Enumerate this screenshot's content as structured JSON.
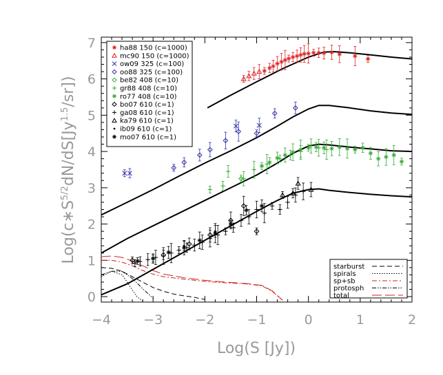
{
  "chart_data": {
    "type": "scatter",
    "xlabel": "Log(S [Jy])",
    "ylabel_parts": [
      "Log(c∗S",
      "5/2",
      "dN/dS[Jy",
      "1.5",
      "/sr])"
    ],
    "xlim": [
      -4,
      2
    ],
    "ylim": [
      -0.15,
      7.15
    ],
    "x_ticks": [
      -4,
      -3,
      -2,
      -1,
      0,
      1,
      2
    ],
    "y_ticks": [
      0,
      1,
      2,
      3,
      4,
      5,
      6,
      7
    ],
    "x_tick_labels": [
      "−4",
      "−3",
      "−2",
      "−1",
      "0",
      "1",
      "2"
    ],
    "y_tick_labels": [
      "0",
      "1",
      "2",
      "3",
      "4",
      "5",
      "6",
      "7"
    ],
    "grid": false,
    "legend_position": "top-left",
    "series": [
      {
        "name": "ha88 150 (c=1000)",
        "marker": "asterisk",
        "color": "#dd2222",
        "x": [
          -0.85,
          -0.75,
          -0.68,
          -0.6,
          -0.52,
          -0.45,
          -0.38,
          -0.3,
          -0.22,
          -0.15,
          -0.08,
          0.0,
          0.1,
          0.2,
          0.3,
          0.45,
          0.6,
          0.9,
          1.15
        ],
        "y": [
          6.22,
          6.3,
          6.35,
          6.42,
          6.47,
          6.52,
          6.56,
          6.6,
          6.63,
          6.66,
          6.69,
          6.7,
          6.72,
          6.72,
          6.71,
          6.73,
          6.68,
          6.63,
          6.55
        ]
      },
      {
        "name": "mc90 150 (c=1000)",
        "marker": "triangle",
        "color": "#dd2222",
        "x": [
          -1.25,
          -1.15,
          -1.05,
          -0.95
        ],
        "y": [
          6.0,
          6.08,
          6.15,
          6.2
        ]
      },
      {
        "name": "ow09 325 (c=100)",
        "marker": "x",
        "color": "#3333aa",
        "x": [
          -3.55,
          -3.45,
          -1.4,
          -0.95
        ],
        "y": [
          3.4,
          3.4,
          4.7,
          4.72
        ]
      },
      {
        "name": "oo88 325 (c=100)",
        "marker": "diamond",
        "color": "#3333aa",
        "x": [
          -2.6,
          -2.4,
          -2.1,
          -1.9,
          -1.6,
          -1.35,
          -1.0,
          -0.65,
          -0.25
        ],
        "y": [
          3.55,
          3.7,
          3.9,
          4.05,
          4.3,
          4.55,
          4.5,
          5.05,
          5.2
        ]
      },
      {
        "name": "ro77 408 (c=10)",
        "marker": "asterisk",
        "color": "#33aa33",
        "x": [
          -0.9,
          -0.75,
          -0.6,
          -0.45,
          -0.3,
          -0.15,
          0.0,
          0.15,
          0.3,
          0.45,
          0.6,
          0.75,
          0.9,
          1.05,
          1.2,
          1.35,
          1.5,
          1.65,
          1.8
        ],
        "y": [
          3.6,
          3.7,
          3.82,
          3.9,
          3.98,
          4.05,
          4.1,
          4.12,
          4.1,
          4.08,
          4.12,
          4.08,
          4.05,
          4.1,
          3.95,
          3.8,
          3.85,
          3.9,
          3.72
        ]
      },
      {
        "name": "be82 408 (c=10)",
        "marker": "diamond",
        "color": "#33aa33",
        "x": [
          -1.3
        ],
        "y": [
          3.25
        ]
      },
      {
        "name": "gr88 408 (c=10)",
        "marker": "plus",
        "color": "#33aa33",
        "x": [
          -1.9,
          -1.65,
          -1.55,
          -1.25,
          -1.05,
          -0.8,
          -0.55,
          -0.35,
          -0.15,
          0.05,
          0.2,
          0.35
        ],
        "y": [
          2.95,
          3.05,
          3.45,
          3.25,
          3.5,
          3.65,
          3.8,
          3.9,
          4.0,
          4.15,
          4.1,
          4.05
        ]
      },
      {
        "name": "bo07 610 (c=1)",
        "marker": "diamond",
        "color": "#000000",
        "x": [
          -3.4,
          -2.8,
          -2.3,
          -1.9,
          -1.5,
          -1.25,
          -1.0
        ],
        "y": [
          1.0,
          1.15,
          1.45,
          1.7,
          2.1,
          2.5,
          1.8
        ]
      },
      {
        "name": "ga08 610 (c=1)",
        "marker": "plus",
        "color": "#000000",
        "x": [
          -3.35,
          -3.25,
          -3.1,
          -2.95,
          -2.8,
          -2.65,
          -2.5,
          -2.35,
          -2.2,
          -2.05,
          -1.9,
          -1.75,
          -1.6,
          -1.45,
          -1.3,
          -1.15,
          -1.0,
          -0.85,
          -0.7,
          -0.55,
          -0.4,
          -0.25,
          -0.1
        ],
        "y": [
          0.92,
          0.97,
          1.02,
          1.08,
          1.12,
          1.2,
          1.28,
          1.35,
          1.42,
          1.5,
          1.6,
          1.7,
          1.8,
          1.9,
          2.1,
          2.2,
          2.4,
          2.3,
          2.5,
          2.4,
          2.6,
          2.8,
          2.9
        ]
      },
      {
        "name": "ka79 610 (c=1)",
        "marker": "triangle",
        "color": "#000000",
        "x": [
          -0.5,
          -0.3,
          -0.2,
          0.05
        ],
        "y": [
          2.8,
          2.85,
          3.12,
          2.95
        ]
      },
      {
        "name": "ib09 610 (c=1)",
        "marker": "dot",
        "color": "#000000",
        "x": [
          -3.0,
          -2.4,
          -1.8
        ],
        "y": [
          1.05,
          1.4,
          1.8
        ]
      },
      {
        "name": "mo07 610 (c=1)",
        "marker": "asterisk",
        "color": "#000000",
        "x": [
          -3.3,
          -3.0,
          -2.7,
          -2.4,
          -2.1,
          -1.8,
          -1.5,
          -1.2,
          -0.9
        ],
        "y": [
          0.98,
          1.05,
          1.22,
          1.35,
          1.55,
          1.75,
          2.0,
          2.38,
          2.5
        ]
      }
    ],
    "model_curves": [
      {
        "x": [
          -1.95,
          -1.5,
          -1,
          -0.5,
          0,
          0.3,
          0.5,
          0.8,
          1.2,
          1.6,
          2
        ],
        "y": [
          5.2,
          5.55,
          5.92,
          6.28,
          6.6,
          6.74,
          6.75,
          6.72,
          6.66,
          6.6,
          6.55
        ]
      },
      {
        "x": [
          -4,
          -3.5,
          -3,
          -2.5,
          -2,
          -1.5,
          -1,
          -0.6,
          -0.3,
          0,
          0.2,
          0.4,
          0.8,
          1.2,
          1.6,
          2
        ],
        "y": [
          2.25,
          2.6,
          2.95,
          3.32,
          3.68,
          4.02,
          4.38,
          4.7,
          4.95,
          5.17,
          5.27,
          5.27,
          5.2,
          5.12,
          5.06,
          5.02
        ]
      },
      {
        "x": [
          -4,
          -3.5,
          -3,
          -2.5,
          -2,
          -1.5,
          -1,
          -0.6,
          -0.3,
          0,
          0.2,
          0.4,
          0.8,
          1.2,
          1.6,
          2
        ],
        "y": [
          1.2,
          1.6,
          1.95,
          2.3,
          2.65,
          3.0,
          3.35,
          3.68,
          3.95,
          4.15,
          4.2,
          4.18,
          4.12,
          4.07,
          4.02,
          4.0
        ]
      },
      {
        "x": [
          -4,
          -3.5,
          -3,
          -2.5,
          -2,
          -1.5,
          -1,
          -0.6,
          -0.3,
          0,
          0.2,
          0.4,
          0.8,
          1.2,
          1.6,
          2
        ],
        "y": [
          0.05,
          0.35,
          0.75,
          1.15,
          1.55,
          1.95,
          2.35,
          2.65,
          2.85,
          2.95,
          2.97,
          2.93,
          2.87,
          2.82,
          2.78,
          2.75
        ]
      }
    ],
    "components": [
      {
        "name": "starburst",
        "dash": "7,4",
        "color": "#000000",
        "x": [
          -4,
          -3.8,
          -3.6,
          -3.4,
          -3.2,
          -3.0,
          -2.8,
          -2.6,
          -2.4,
          -2.2,
          -2.0
        ],
        "y": [
          0.8,
          0.78,
          0.7,
          0.55,
          0.4,
          0.25,
          0.15,
          0.07,
          0.02,
          -0.02,
          -0.08
        ]
      },
      {
        "name": "spirals",
        "dash": "1.5,2",
        "color": "#000000",
        "x": [
          -4,
          -3.8,
          -3.6,
          -3.5,
          -3.4,
          -3.3,
          -3.2
        ],
        "y": [
          0.55,
          0.7,
          0.6,
          0.4,
          0.18,
          -0.02,
          -0.12
        ]
      },
      {
        "name": "sp+sb",
        "dash": "7,3,2,3",
        "color": "#cc2222",
        "x": [
          -4,
          -3.8,
          -3.6,
          -3.4,
          -3.2,
          -3.0,
          -2.8,
          -2.4,
          -2.0,
          -1.6,
          -1.2,
          -0.9,
          -0.7,
          -0.6,
          -0.5
        ],
        "y": [
          1.0,
          1.0,
          0.95,
          0.85,
          0.72,
          0.62,
          0.55,
          0.48,
          0.42,
          0.38,
          0.35,
          0.3,
          0.15,
          0.02,
          -0.1
        ]
      },
      {
        "name": "protosph",
        "dash": "6,2,1.5,2,1.5,2",
        "color": "#000000",
        "x": [
          -4,
          -3.8,
          -3.6,
          -3.4,
          -3.2,
          -3.0
        ],
        "y": [
          0.6,
          0.7,
          0.7,
          0.5,
          0.22,
          -0.05
        ]
      },
      {
        "name": "total",
        "dash": "14,5",
        "color": "#cc2222",
        "x": [
          -4,
          -3.8,
          -3.6,
          -3.4,
          -3.2,
          -3.0,
          -2.8,
          -2.4,
          -2.0,
          -1.6,
          -1.2,
          -0.9,
          -0.7,
          -0.6,
          -0.5
        ],
        "y": [
          1.1,
          1.12,
          1.08,
          0.98,
          0.85,
          0.72,
          0.62,
          0.52,
          0.45,
          0.4,
          0.36,
          0.31,
          0.16,
          0.03,
          -0.1
        ]
      }
    ],
    "component_legend_position": "bottom-right"
  }
}
